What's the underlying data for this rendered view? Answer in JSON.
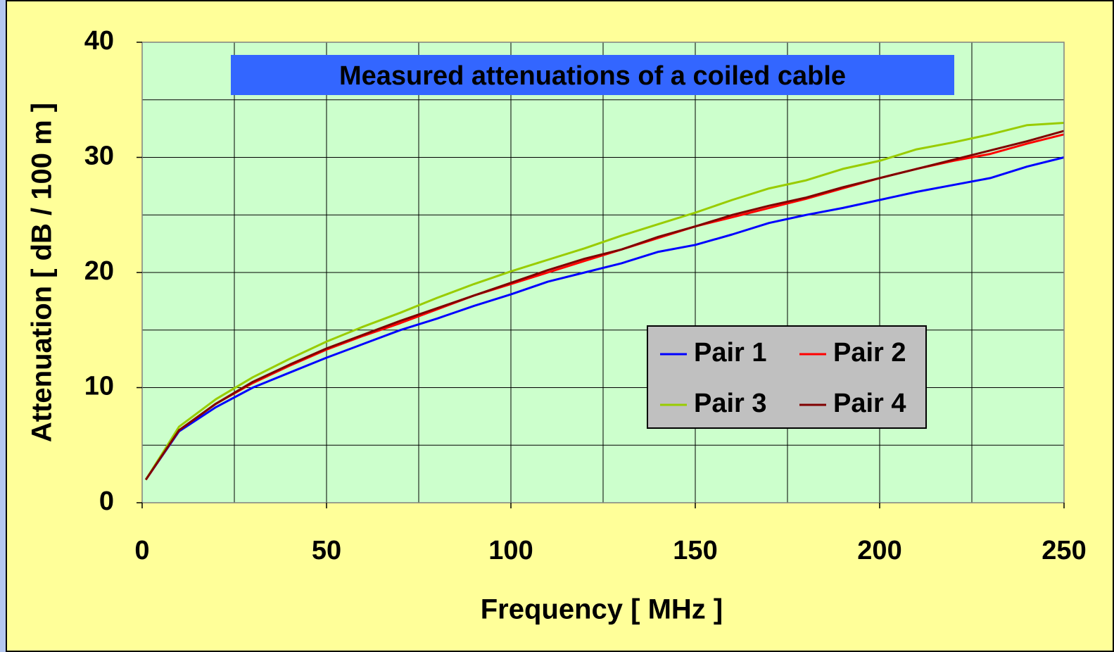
{
  "chart_data": {
    "type": "line",
    "title": "Measured attenuations of a coiled cable",
    "xlabel": "Frequency   [ MHz ]",
    "ylabel": "Attenuation   [ dB / 100 m ]",
    "x": [
      1,
      10,
      20,
      30,
      40,
      50,
      60,
      70,
      80,
      90,
      100,
      110,
      120,
      130,
      140,
      150,
      160,
      170,
      180,
      190,
      200,
      210,
      220,
      230,
      240,
      250
    ],
    "series": [
      {
        "name": "Pair 1",
        "color": "#0000ff",
        "values": [
          2,
          6.2,
          8.3,
          10,
          11.3,
          12.6,
          13.8,
          15,
          16,
          17.1,
          18.1,
          19.2,
          20,
          20.8,
          21.8,
          22.4,
          23.3,
          24.3,
          25,
          25.6,
          26.3,
          27,
          27.6,
          28.2,
          29.2,
          30
        ]
      },
      {
        "name": "Pair 2",
        "color": "#ff0000",
        "values": [
          2,
          6.3,
          8.6,
          10.4,
          11.9,
          13.3,
          14.5,
          15.6,
          16.8,
          18,
          19,
          20,
          21,
          22,
          23,
          24,
          24.8,
          25.6,
          26.4,
          27.3,
          28.2,
          29,
          29.7,
          30.3,
          31.2,
          32
        ]
      },
      {
        "name": "Pair 3",
        "color": "#99cc00",
        "values": [
          2,
          6.6,
          9,
          10.9,
          12.5,
          14,
          15.3,
          16.5,
          17.8,
          19,
          20.1,
          21.1,
          22.1,
          23.2,
          24.2,
          25.2,
          26.3,
          27.3,
          28,
          29,
          29.7,
          30.7,
          31.3,
          32,
          32.8,
          33
        ]
      },
      {
        "name": "Pair 4",
        "color": "#800000",
        "values": [
          2,
          6.3,
          8.6,
          10.5,
          12,
          13.4,
          14.6,
          15.8,
          16.9,
          18,
          19.1,
          20.2,
          21.2,
          22,
          23.1,
          24,
          25,
          25.8,
          26.5,
          27.4,
          28.2,
          29,
          29.8,
          30.6,
          31.4,
          32.3
        ]
      }
    ],
    "xlim": [
      0,
      250
    ],
    "ylim": [
      0,
      40
    ],
    "xticks": [
      0,
      50,
      100,
      150,
      200,
      250
    ],
    "yticks": [
      0,
      10,
      20,
      30,
      40
    ],
    "x_grid": [
      0,
      25,
      50,
      75,
      100,
      125,
      150,
      175,
      200,
      225,
      250
    ],
    "y_grid": [
      0,
      5,
      10,
      15,
      20,
      25,
      30,
      35,
      40
    ],
    "grid": true
  }
}
